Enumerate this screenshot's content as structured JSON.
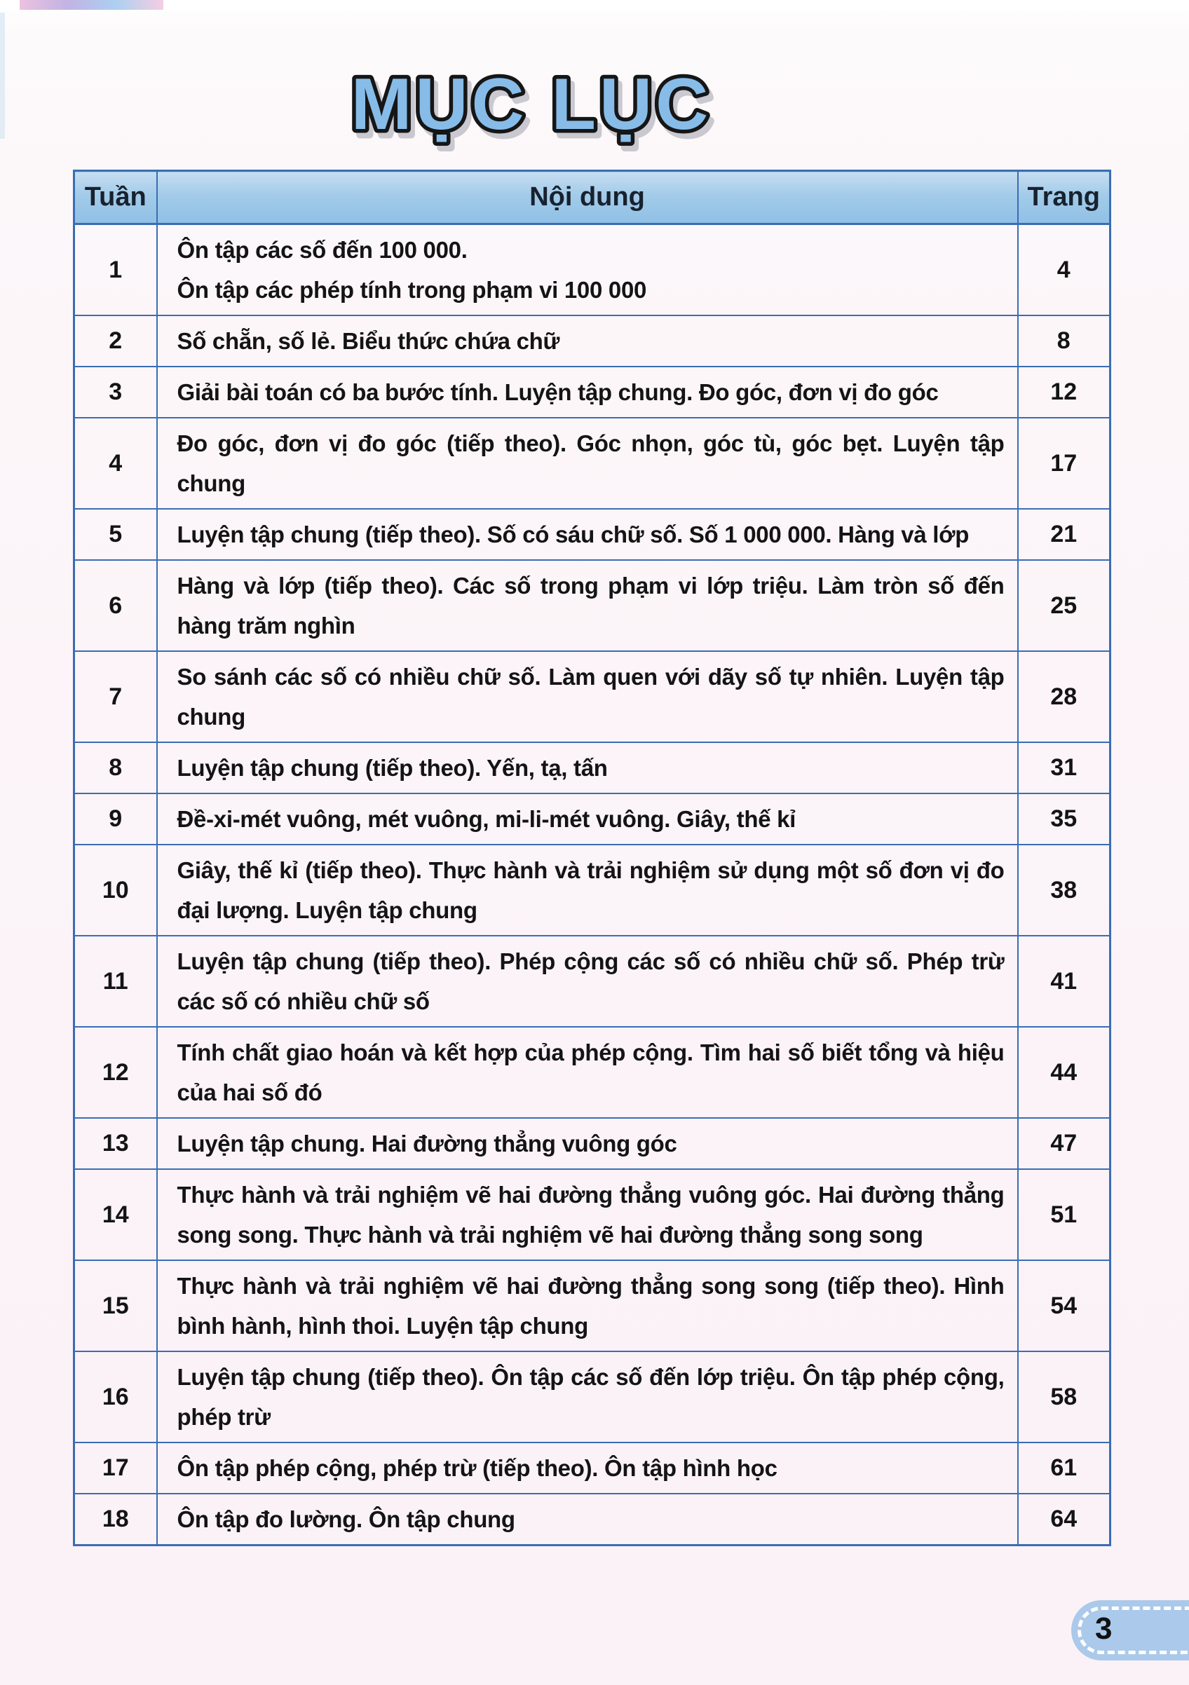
{
  "page": {
    "title": "MỤC LỤC",
    "page_number": "3"
  },
  "table": {
    "headers": {
      "week": "Tuần",
      "content": "Nội dung",
      "page": "Trang"
    },
    "rows": [
      {
        "week": "1",
        "content": "Ôn tập các số đến 100 000.\nÔn tập các phép tính trong phạm vi 100 000",
        "page": "4"
      },
      {
        "week": "2",
        "content": "Số chẵn, số lẻ. Biểu thức chứa chữ",
        "page": "8"
      },
      {
        "week": "3",
        "content": "Giải bài toán có ba bước tính. Luyện tập chung. Đo góc, đơn vị đo góc",
        "page": "12"
      },
      {
        "week": "4",
        "content": "Đo góc, đơn vị đo góc (tiếp theo). Góc nhọn, góc tù, góc bẹt. Luyện tập chung",
        "page": "17"
      },
      {
        "week": "5",
        "content": "Luyện tập chung (tiếp theo). Số có sáu chữ số. Số 1 000 000. Hàng và lớp",
        "page": "21"
      },
      {
        "week": "6",
        "content": "Hàng và lớp (tiếp theo). Các số trong phạm vi lớp triệu. Làm tròn số đến hàng trăm nghìn",
        "page": "25"
      },
      {
        "week": "7",
        "content": "So sánh các số có nhiều chữ số. Làm quen với dãy số tự nhiên. Luyện tập chung",
        "page": "28"
      },
      {
        "week": "8",
        "content": "Luyện tập chung (tiếp theo). Yến, tạ, tấn",
        "page": "31"
      },
      {
        "week": "9",
        "content": "Đề-xi-mét vuông, mét vuông, mi-li-mét vuông. Giây, thế kỉ",
        "page": "35"
      },
      {
        "week": "10",
        "content": "Giây, thế kỉ (tiếp theo). Thực hành và trải nghiệm sử dụng một số đơn vị đo đại lượng. Luyện tập chung",
        "page": "38"
      },
      {
        "week": "11",
        "content": "Luyện tập chung (tiếp theo). Phép cộng các số có nhiều chữ số. Phép trừ các số có nhiều chữ số",
        "page": "41"
      },
      {
        "week": "12",
        "content": "Tính chất giao hoán và kết hợp của phép cộng. Tìm hai số biết tổng và hiệu của hai số đó",
        "page": "44"
      },
      {
        "week": "13",
        "content": "Luyện tập chung. Hai đường thẳng vuông góc",
        "page": "47"
      },
      {
        "week": "14",
        "content": "Thực hành và trải nghiệm vẽ hai đường thẳng vuông góc. Hai đường thẳng song song. Thực hành và trải nghiệm vẽ hai đường thẳng song song",
        "page": "51"
      },
      {
        "week": "15",
        "content": "Thực hành và trải nghiệm vẽ hai đường thẳng song song (tiếp theo). Hình bình hành, hình thoi. Luyện tập chung",
        "page": "54"
      },
      {
        "week": "16",
        "content": "Luyện tập chung (tiếp theo). Ôn tập các số đến lớp triệu. Ôn tập phép cộng, phép trừ",
        "page": "58"
      },
      {
        "week": "17",
        "content": "Ôn tập phép cộng, phép trừ (tiếp theo). Ôn tập hình học",
        "page": "61"
      },
      {
        "week": "18",
        "content": "Ôn tập đo lường. Ôn tập chung",
        "page": "64"
      }
    ]
  },
  "colors": {
    "table_border": "#3a6db3",
    "header_fill": "#a3cbe9",
    "title_fill": "#87bce8",
    "title_outline": "#161616",
    "badge_fill": "#abc9ea",
    "page_wash": "#fbf2f7"
  }
}
